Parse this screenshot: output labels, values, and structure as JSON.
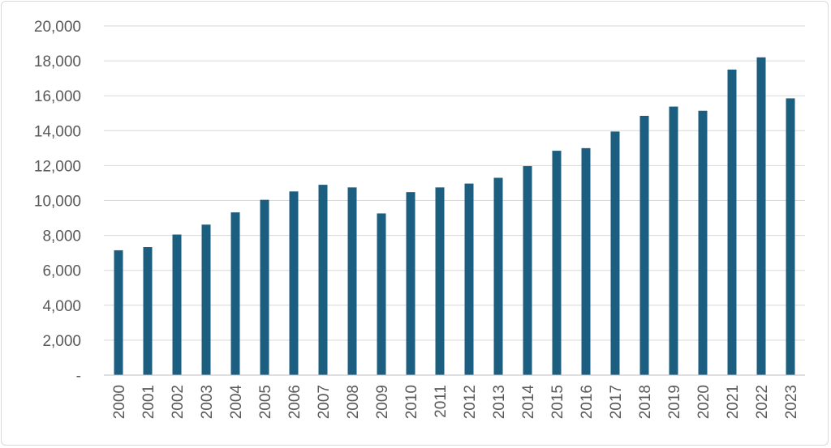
{
  "chart_data": {
    "type": "bar",
    "title": "",
    "xlabel": "",
    "ylabel": "",
    "categories": [
      "2000",
      "2001",
      "2002",
      "2003",
      "2004",
      "2005",
      "2006",
      "2007",
      "2008",
      "2009",
      "2010",
      "2011",
      "2012",
      "2013",
      "2014",
      "2015",
      "2016",
      "2017",
      "2018",
      "2019",
      "2020",
      "2021",
      "2022",
      "2023"
    ],
    "values": [
      7150,
      7330,
      8050,
      8620,
      9320,
      10040,
      10520,
      10900,
      10750,
      9260,
      10480,
      10750,
      10970,
      11300,
      11970,
      12850,
      13000,
      13950,
      14850,
      15380,
      15140,
      17500,
      18200,
      15850
    ],
    "ylim": [
      0,
      20000
    ],
    "yticks": [
      0,
      2000,
      4000,
      6000,
      8000,
      10000,
      12000,
      14000,
      16000,
      18000,
      20000
    ],
    "ytick_labels": [
      "-",
      "2,000",
      "4,000",
      "6,000",
      "8,000",
      "10,000",
      "12,000",
      "14,000",
      "16,000",
      "18,000",
      "20,000"
    ],
    "grid": true,
    "legend": "none",
    "bar_color": "#1b5e7f"
  }
}
